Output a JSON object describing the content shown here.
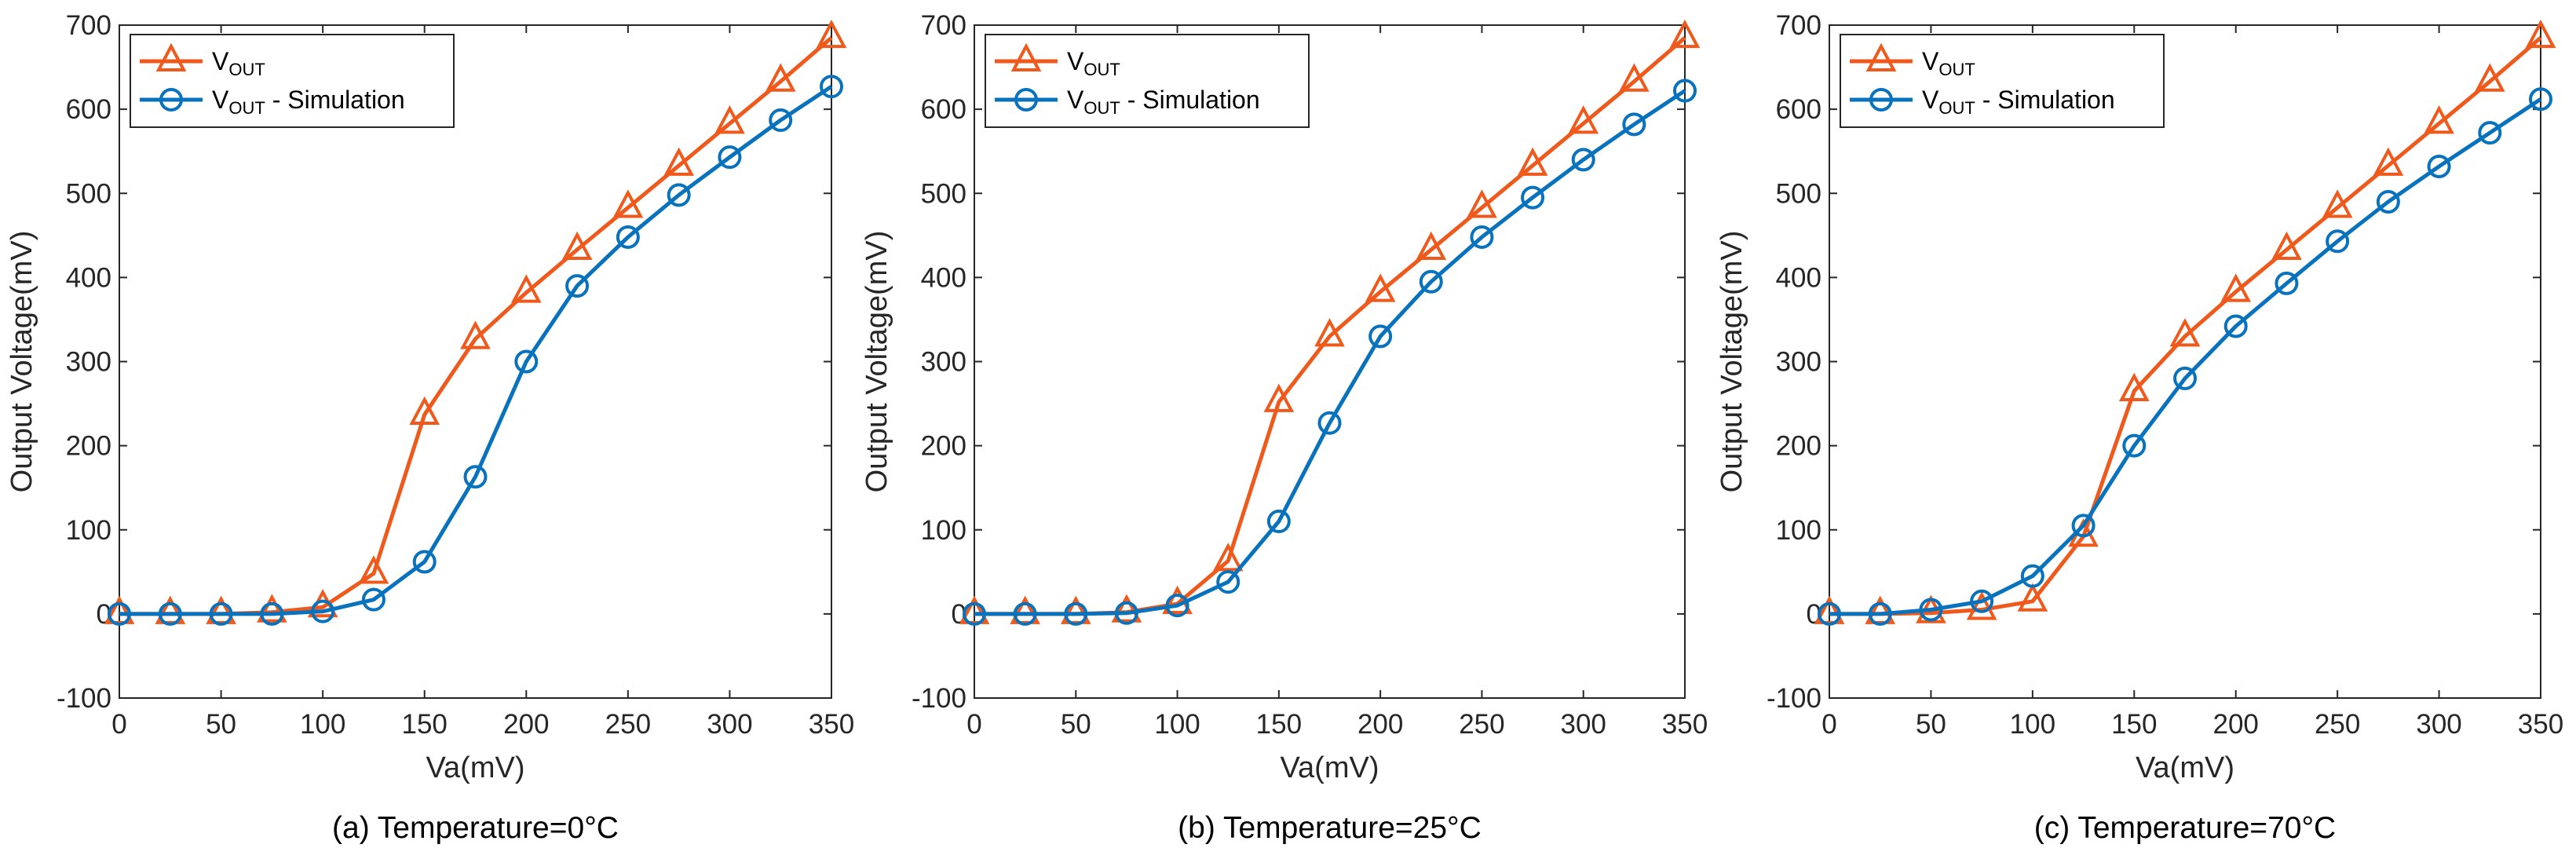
{
  "colors": {
    "measured": "#EF5A1C",
    "simulation": "#0972BD",
    "axis": "#262626"
  },
  "legend": {
    "measured": {
      "main": "V",
      "sub": "OUT",
      "suffix": ""
    },
    "simulation": {
      "main": "V",
      "sub": "OUT",
      "suffix": " - Simulation"
    }
  },
  "chart_data": [
    {
      "type": "line",
      "caption": "(a) Temperature=0°C",
      "xlabel": "Va(mV)",
      "ylabel": "Output Voltage(mV)",
      "xlim": [
        0,
        350
      ],
      "ylim": [
        -100,
        700
      ],
      "xticks": [
        0,
        50,
        100,
        150,
        200,
        250,
        300,
        350
      ],
      "yticks": [
        -100,
        0,
        100,
        200,
        300,
        400,
        500,
        600,
        700
      ],
      "x": [
        0,
        25,
        50,
        75,
        100,
        125,
        150,
        175,
        200,
        225,
        250,
        275,
        300,
        325,
        350
      ],
      "series": [
        {
          "name": "VOUT",
          "marker": "triangle",
          "values": [
            0,
            0,
            0,
            2,
            8,
            48,
            237,
            327,
            382,
            433,
            483,
            533,
            583,
            633,
            685
          ]
        },
        {
          "name": "VOUT - Simulation",
          "marker": "circle",
          "values": [
            0,
            0,
            0,
            0,
            3,
            17,
            62,
            163,
            300,
            390,
            448,
            498,
            543,
            587,
            627
          ]
        }
      ]
    },
    {
      "type": "line",
      "caption": "(b) Temperature=25°C",
      "xlabel": "Va(mV)",
      "ylabel": "Output Voltage(mV)",
      "xlim": [
        0,
        350
      ],
      "ylim": [
        -100,
        700
      ],
      "xticks": [
        0,
        50,
        100,
        150,
        200,
        250,
        300,
        350
      ],
      "yticks": [
        -100,
        0,
        100,
        200,
        300,
        400,
        500,
        600,
        700
      ],
      "x": [
        0,
        25,
        50,
        75,
        100,
        125,
        150,
        175,
        200,
        225,
        250,
        275,
        300,
        325,
        350
      ],
      "series": [
        {
          "name": "VOUT",
          "marker": "triangle",
          "values": [
            0,
            0,
            0,
            2,
            12,
            63,
            252,
            330,
            383,
            433,
            483,
            533,
            583,
            633,
            685
          ]
        },
        {
          "name": "VOUT - Simulation",
          "marker": "circle",
          "values": [
            0,
            0,
            0,
            1,
            10,
            38,
            110,
            227,
            330,
            395,
            448,
            495,
            540,
            582,
            622
          ]
        }
      ]
    },
    {
      "type": "line",
      "caption": "(c) Temperature=70°C",
      "xlabel": "Va(mV)",
      "ylabel": "Output Voltage(mV)",
      "xlim": [
        0,
        350
      ],
      "ylim": [
        -100,
        700
      ],
      "xticks": [
        0,
        50,
        100,
        150,
        200,
        250,
        300,
        350
      ],
      "yticks": [
        -100,
        0,
        100,
        200,
        300,
        400,
        500,
        600,
        700
      ],
      "x": [
        0,
        25,
        50,
        75,
        100,
        125,
        150,
        175,
        200,
        225,
        250,
        275,
        300,
        325,
        350
      ],
      "series": [
        {
          "name": "VOUT",
          "marker": "triangle",
          "values": [
            0,
            0,
            1,
            5,
            15,
            92,
            265,
            330,
            383,
            433,
            483,
            533,
            583,
            633,
            685
          ]
        },
        {
          "name": "VOUT - Simulation",
          "marker": "circle",
          "values": [
            0,
            0,
            5,
            15,
            45,
            105,
            200,
            280,
            342,
            393,
            443,
            490,
            532,
            572,
            612
          ]
        }
      ]
    }
  ]
}
